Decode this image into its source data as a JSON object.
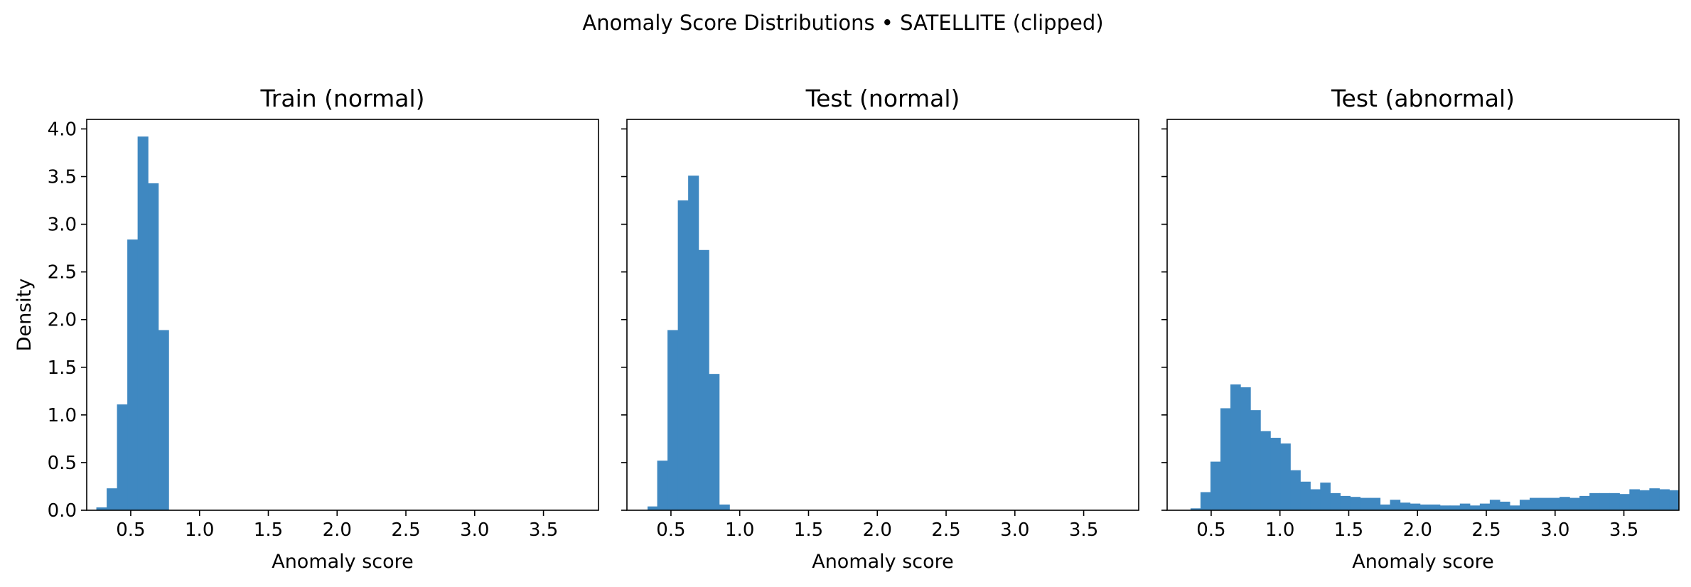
{
  "figure": {
    "suptitle": "Anomaly Score Distributions • SATELLITE (clipped)",
    "bar_color": "#3f88c1"
  },
  "chart_data": [
    {
      "type": "bar",
      "title": "Train (normal)",
      "xlabel": "Anomaly score",
      "ylabel": "Density",
      "xlim": [
        0.18,
        3.9
      ],
      "ylim": [
        0,
        4.1
      ],
      "xticks": [
        "0.5",
        "1.0",
        "1.5",
        "2.0",
        "2.5",
        "3.0",
        "3.5"
      ],
      "yticks": [
        "0.0",
        "0.5",
        "1.0",
        "1.5",
        "2.0",
        "2.5",
        "3.0",
        "3.5",
        "4.0"
      ],
      "bin_edges": [
        0.25,
        0.325,
        0.4,
        0.475,
        0.55,
        0.625,
        0.7,
        0.775
      ],
      "values": [
        0.03,
        0.23,
        1.11,
        2.84,
        3.92,
        3.43,
        1.89
      ]
    },
    {
      "type": "bar",
      "title": "Test (normal)",
      "xlabel": "Anomaly score",
      "ylabel": "",
      "xlim": [
        0.18,
        3.9
      ],
      "ylim": [
        0,
        4.1
      ],
      "xticks": [
        "0.5",
        "1.0",
        "1.5",
        "2.0",
        "2.5",
        "3.0",
        "3.5"
      ],
      "yticks": [],
      "bin_edges": [
        0.33,
        0.4,
        0.475,
        0.55,
        0.625,
        0.7,
        0.775,
        0.85,
        0.925
      ],
      "values": [
        0.04,
        0.52,
        1.89,
        3.25,
        3.51,
        2.73,
        1.43,
        0.06
      ]
    },
    {
      "type": "bar",
      "title": "Test (abnormal)",
      "xlabel": "Anomaly score",
      "ylabel": "",
      "xlim": [
        0.18,
        3.9
      ],
      "ylim": [
        0,
        4.1
      ],
      "xticks": [
        "0.5",
        "1.0",
        "1.5",
        "2.0",
        "2.5",
        "3.0",
        "3.5"
      ],
      "yticks": [],
      "bin_start": 0.35,
      "bin_width": 0.0725,
      "values": [
        0.02,
        0.19,
        0.51,
        1.07,
        1.32,
        1.29,
        1.05,
        0.83,
        0.76,
        0.7,
        0.42,
        0.3,
        0.22,
        0.29,
        0.18,
        0.15,
        0.14,
        0.13,
        0.13,
        0.06,
        0.11,
        0.08,
        0.07,
        0.06,
        0.06,
        0.05,
        0.05,
        0.07,
        0.05,
        0.07,
        0.11,
        0.09,
        0.05,
        0.11,
        0.13,
        0.13,
        0.13,
        0.14,
        0.13,
        0.15,
        0.18,
        0.18,
        0.18,
        0.17,
        0.22,
        0.21,
        0.23,
        0.22,
        0.21,
        0.24,
        0.22,
        0.26
      ]
    }
  ]
}
